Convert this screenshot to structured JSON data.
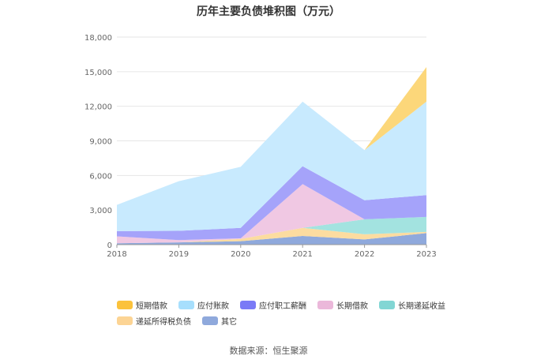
{
  "chart_data": {
    "type": "area",
    "stacked": true,
    "title": "历年主要负债堆积图（万元）",
    "x": [
      "2018",
      "2019",
      "2020",
      "2021",
      "2022",
      "2023"
    ],
    "ylim": [
      0,
      18000
    ],
    "yticks": [
      "0",
      "3,000",
      "6,000",
      "9,000",
      "12,000",
      "15,000",
      "18,000"
    ],
    "ytick_values": [
      0,
      3000,
      6000,
      9000,
      12000,
      15000,
      18000
    ],
    "grid": true,
    "legend_position": "bottom",
    "series": [
      {
        "name": "其它",
        "color": "#8fa9dc",
        "values": [
          120,
          200,
          300,
          750,
          450,
          1000
        ]
      },
      {
        "name": "递延所得税负债",
        "color": "#fcdca0",
        "values": [
          0,
          0,
          200,
          700,
          450,
          100
        ]
      },
      {
        "name": "长期递延收益",
        "color": "#a3e3e0",
        "values": [
          0,
          0,
          0,
          0,
          1300,
          1300
        ]
      },
      {
        "name": "长期借款",
        "color": "#f0c8e3",
        "values": [
          600,
          200,
          50,
          3800,
          0,
          0
        ]
      },
      {
        "name": "应付职工薪酬",
        "color": "#a5a3fa",
        "values": [
          450,
          800,
          900,
          1550,
          1650,
          1900
        ]
      },
      {
        "name": "应付账款",
        "color": "#c8eafe",
        "values": [
          2280,
          4300,
          5300,
          5600,
          4350,
          8100
        ]
      },
      {
        "name": "短期借款",
        "color": "#fcd77a",
        "values": [
          0,
          0,
          0,
          0,
          0,
          3000
        ]
      }
    ]
  },
  "legend_order": [
    "短期借款",
    "应付账款",
    "应付职工薪酬",
    "长期借款",
    "长期递延收益",
    "递延所得税负债",
    "其它"
  ],
  "legend_colors": {
    "短期借款": "#fbc23c",
    "应付账款": "#a7dffd",
    "应付职工薪酬": "#7a7af6",
    "长期借款": "#ebb8da",
    "长期递延收益": "#82d6d4",
    "递延所得税负债": "#fcd494",
    "其它": "#8fa9dc"
  },
  "source_text": "数据来源：恒生聚源"
}
